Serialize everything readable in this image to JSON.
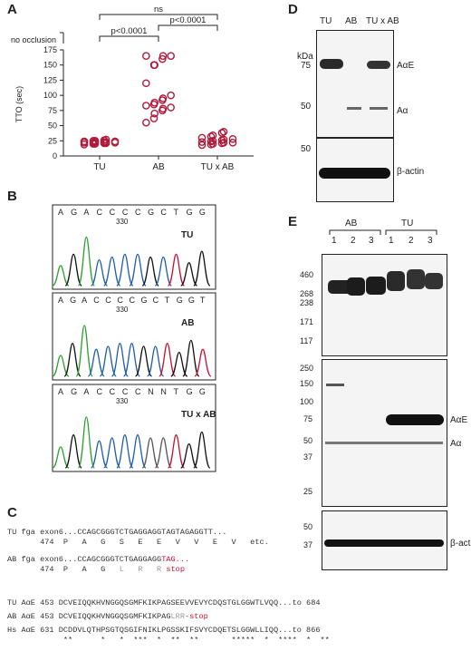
{
  "panels": {
    "a": "A",
    "b": "B",
    "c": "C",
    "d": "D",
    "e": "E"
  },
  "panel_a": {
    "chart_data": {
      "type": "scatter",
      "categories": [
        "TU",
        "AB",
        "TU x AB"
      ],
      "ylabel": "TTO (sec)",
      "ylim": [
        0,
        175
      ],
      "yticks": [
        0,
        25,
        50,
        75,
        100,
        125,
        150,
        175
      ],
      "break_label": "no occlusion",
      "points": {
        "TU": [
          19,
          20,
          20,
          21,
          21,
          22,
          22,
          22,
          23,
          23,
          23,
          24,
          24,
          25,
          25,
          26,
          27
        ],
        "AB": [
          55,
          62,
          70,
          75,
          78,
          80,
          83,
          85,
          88,
          92,
          95,
          100,
          120,
          150,
          150,
          160,
          165,
          165,
          165
        ],
        "TU x AB": [
          18,
          19,
          20,
          21,
          22,
          22,
          23,
          24,
          25,
          26,
          27,
          28,
          30,
          32,
          34,
          38,
          40
        ]
      },
      "significance": [
        {
          "pair": [
            "TU",
            "TU x AB"
          ],
          "label": "ns"
        },
        {
          "pair": [
            "TU",
            "AB"
          ],
          "label": "p<0.0001"
        },
        {
          "pair": [
            "AB",
            "TU x AB"
          ],
          "label": "p<0.0001"
        }
      ],
      "marker_color": "#b0193a"
    }
  },
  "panel_b": {
    "traces": [
      {
        "bases": [
          "A",
          "G",
          "A",
          "C",
          "C",
          "C",
          "C",
          "G",
          "C",
          "T",
          "G",
          "G"
        ],
        "position": "330",
        "label": "TU"
      },
      {
        "bases": [
          "A",
          "G",
          "A",
          "C",
          "C",
          "C",
          "C",
          "G",
          "C",
          "T",
          "G",
          "G",
          "T"
        ],
        "position": "330",
        "label": "AB"
      },
      {
        "bases": [
          "A",
          "G",
          "A",
          "C",
          "C",
          "C",
          "C",
          "N",
          "N",
          "T",
          "G",
          "G"
        ],
        "position": "330",
        "label": "TU x AB"
      }
    ]
  },
  "panel_c": {
    "line1a": "TU fga exon6...CCAGCGGGTCTGAGGAGGTAGTAGAGGTT...",
    "line1b": "       474  P   A   G   S   E   E   V   V   E   V   etc.",
    "line2a_pre": "AB fga exon6...CCAGCGGGTCTGAGGAGG",
    "line2a_red": "TAG...",
    "line2b_pre": "       474  P   A   G  ",
    "line2b_gray": " L   R   R ",
    "line2b_red": "stop",
    "line3": "TU AαE 453 DCVEIQQKHVNGGQSGMFKIKPAGSEEVVEVYCDQSTGLGGWTLVQQ...to 684",
    "line4_pre": "AB AαE 453 DCVEIQQKHVNGGQSGMFKIKPAG",
    "line4_gray": "LRR",
    "line4_red": "-stop",
    "line5": "Hs AαE 631 DCDDVLQTHPSGTQSGIFNIKLPGSSKIFSVYCDQETSLGGWLLIQQ...to 866",
    "line6": "            **      *   *  ***  *  **  **       *****  *  ****  *  **"
  },
  "panel_d": {
    "lanes": [
      "TU",
      "AB",
      "TU x AB"
    ],
    "kda_label": "kDa",
    "markers_top": [
      "75",
      "50"
    ],
    "markers_bottom": [
      "50"
    ],
    "band_labels": [
      "AαE",
      "Aα"
    ],
    "loading_label": "β-actin"
  },
  "panel_e": {
    "groups": [
      "AB",
      "TU"
    ],
    "lanes": [
      "1",
      "2",
      "3",
      "1",
      "2",
      "3"
    ],
    "markers_1": [
      "460",
      "268",
      "238",
      "171",
      "117"
    ],
    "markers_2": [
      "250",
      "150",
      "100",
      "75",
      "50",
      "37",
      "25"
    ],
    "markers_3": [
      "50",
      "37"
    ],
    "band_labels": [
      "AαE",
      "Aα"
    ],
    "loading_label": "β-actin"
  }
}
